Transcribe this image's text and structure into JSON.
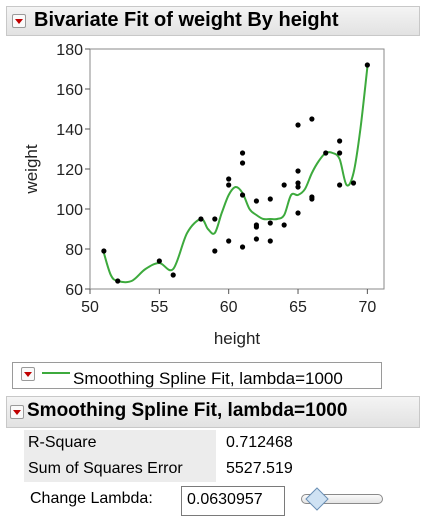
{
  "report": {
    "title": "Bivariate Fit of weight By height"
  },
  "chart_data": {
    "type": "scatter",
    "xlabel": "height",
    "ylabel": "weight",
    "xlim": [
      50,
      71.2
    ],
    "ylim": [
      60,
      180
    ],
    "xticks": [
      "50",
      "55",
      "60",
      "65",
      "70"
    ],
    "yticks": [
      "60",
      "80",
      "100",
      "120",
      "140",
      "160",
      "180"
    ],
    "grid": false,
    "points": [
      [
        51,
        79
      ],
      [
        52,
        64
      ],
      [
        55,
        74
      ],
      [
        56,
        67
      ],
      [
        58,
        95
      ],
      [
        59,
        95
      ],
      [
        59,
        79
      ],
      [
        60,
        112
      ],
      [
        60,
        115
      ],
      [
        60,
        84
      ],
      [
        61,
        128
      ],
      [
        61,
        123
      ],
      [
        61,
        107
      ],
      [
        61,
        81
      ],
      [
        62,
        104
      ],
      [
        62,
        92
      ],
      [
        62,
        91
      ],
      [
        62,
        85
      ],
      [
        63,
        105
      ],
      [
        63,
        93
      ],
      [
        63,
        84
      ],
      [
        64,
        112
      ],
      [
        64,
        92
      ],
      [
        65,
        142
      ],
      [
        65,
        119
      ],
      [
        65,
        113
      ],
      [
        65,
        111
      ],
      [
        65,
        98
      ],
      [
        66,
        145
      ],
      [
        66,
        106
      ],
      [
        66,
        105
      ],
      [
        67,
        128
      ],
      [
        68,
        134
      ],
      [
        68,
        128
      ],
      [
        68,
        112
      ],
      [
        69,
        113
      ],
      [
        70,
        172
      ]
    ],
    "series": [
      {
        "name": "Smoothing Spline Fit, lambda=1000",
        "color": "#3daa3d",
        "x": [
          51,
          51.5,
          52,
          53,
          54,
          55,
          56,
          57,
          58,
          58.5,
          59,
          59.5,
          60,
          60.5,
          61,
          61.5,
          62,
          62.5,
          63,
          63.5,
          64,
          64.5,
          65,
          65.5,
          66,
          66.5,
          67,
          67.5,
          68,
          68.5,
          69,
          69.5,
          70
        ],
        "y": [
          78,
          67,
          64,
          64,
          70,
          73,
          70,
          88,
          95,
          90,
          88,
          98,
          107,
          111,
          108,
          100,
          97,
          95,
          95,
          95,
          97,
          107,
          107,
          110,
          118,
          124,
          128,
          128,
          125,
          112,
          118,
          140,
          171
        ]
      }
    ]
  },
  "legend": {
    "label": "Smoothing Spline Fit, lambda=1000"
  },
  "fit": {
    "title": "Smoothing Spline Fit, lambda=1000",
    "rows": [
      {
        "label": "R-Square",
        "value": "0.712468"
      },
      {
        "label": "Sum of Squares Error",
        "value": "5527.519"
      }
    ],
    "lambda_label": "Change Lambda:",
    "lambda_value": "0.0630957",
    "lambda_slider_position": 0.07
  },
  "colors": {
    "fit_line": "#3daa3d",
    "points": "#000000",
    "disclosure_triangle": "#c00000"
  }
}
